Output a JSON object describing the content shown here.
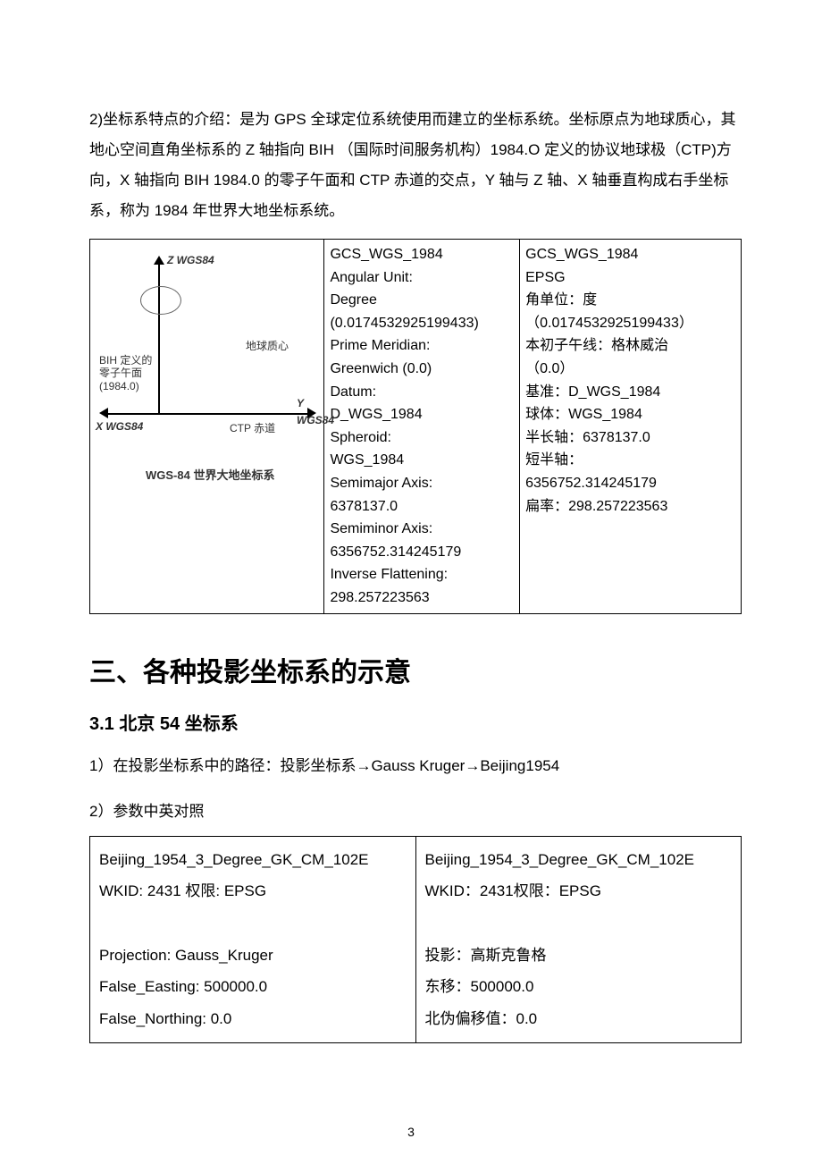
{
  "intro_paragraph": "2)坐标系特点的介绍：是为 GPS 全球定位系统使用而建立的坐标系统。坐标原点为地球质心，其地心空间直角坐标系的 Z 轴指向 BIH （国际时间服务机构）1984.O 定义的协议地球极（CTP)方向，X 轴指向 BIH 1984.0 的零子午面和 CTP 赤道的交点，Y 轴与 Z 轴、X 轴垂直构成右手坐标系，称为 1984 年世界大地坐标系统。",
  "diagram": {
    "z_label": "Z WGS84",
    "x_label": "X WGS84",
    "y_label": "Y WGS84",
    "ctp_label": "CTP 赤道",
    "center_label": "地球质心",
    "bih_label": "BIH 定义的\n零子午面\n(1984.0)",
    "caption": "WGS-84 世界大地坐标系"
  },
  "table1": {
    "col2": "GCS_WGS_1984\nAngular Unit:\nDegree\n(0.0174532925199433)\nPrime Meridian:\nGreenwich (0.0)\nDatum:\nD_WGS_1984\nSpheroid:\nWGS_1984\nSemimajor Axis:\n6378137.0\nSemiminor Axis:\n6356752.314245179\nInverse Flattening:\n298.257223563",
    "col3": "GCS_WGS_1984\nEPSG\n角单位：度\n（0.0174532925199433）\n本初子午线：格林威治\n（0.0）\n基准：D_WGS_1984\n球体：WGS_1984\n半长轴：6378137.0\n短半轴：\n6356752.314245179\n扁率：298.257223563"
  },
  "heading_section3": "三、各种投影坐标系的示意",
  "heading_3_1": "3.1 北京 54 坐标系",
  "para_3_1_1": "1）在投影坐标系中的路径：投影坐标系→Gauss Kruger→Beijing1954",
  "para_3_1_2": "2）参数中英对照",
  "table2": {
    "left": "Beijing_1954_3_Degree_GK_CM_102E\nWKID: 2431 权限: EPSG\n\nProjection: Gauss_Kruger\nFalse_Easting: 500000.0\nFalse_Northing: 0.0",
    "right": "Beijing_1954_3_Degree_GK_CM_102E\nWKID：2431权限：EPSG\n\n投影：高斯克鲁格\n东移：500000.0\n北伪偏移值：0.0"
  },
  "page_number": "3"
}
